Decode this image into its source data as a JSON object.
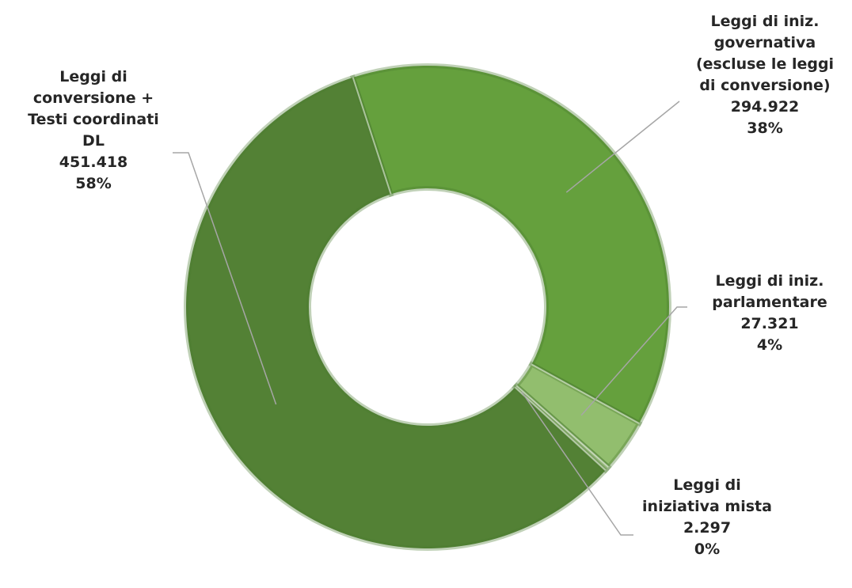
{
  "chart_data": {
    "type": "pie",
    "variant": "donut",
    "title": "",
    "legend": "none",
    "colors": [
      "#538135",
      "#65A03D",
      "#92BE6E",
      "#C2DBA9"
    ],
    "slices": [
      {
        "label_lines": [
          "Leggi di",
          "conversione +",
          "Testi coordinati",
          "DL"
        ],
        "value": 451418,
        "value_text": "451.418",
        "percent_text": "58%"
      },
      {
        "label_lines": [
          "Leggi di iniz.",
          "governativa",
          "(escluse le leggi",
          "di conversione)"
        ],
        "value": 294922,
        "value_text": "294.922",
        "percent_text": "38%"
      },
      {
        "label_lines": [
          "Leggi di iniz.",
          "parlamentare"
        ],
        "value": 27321,
        "value_text": "27.321",
        "percent_text": "4%"
      },
      {
        "label_lines": [
          "Leggi di",
          "iniziativa mista"
        ],
        "value": 2297,
        "value_text": "2.297",
        "percent_text": "0%"
      }
    ]
  }
}
